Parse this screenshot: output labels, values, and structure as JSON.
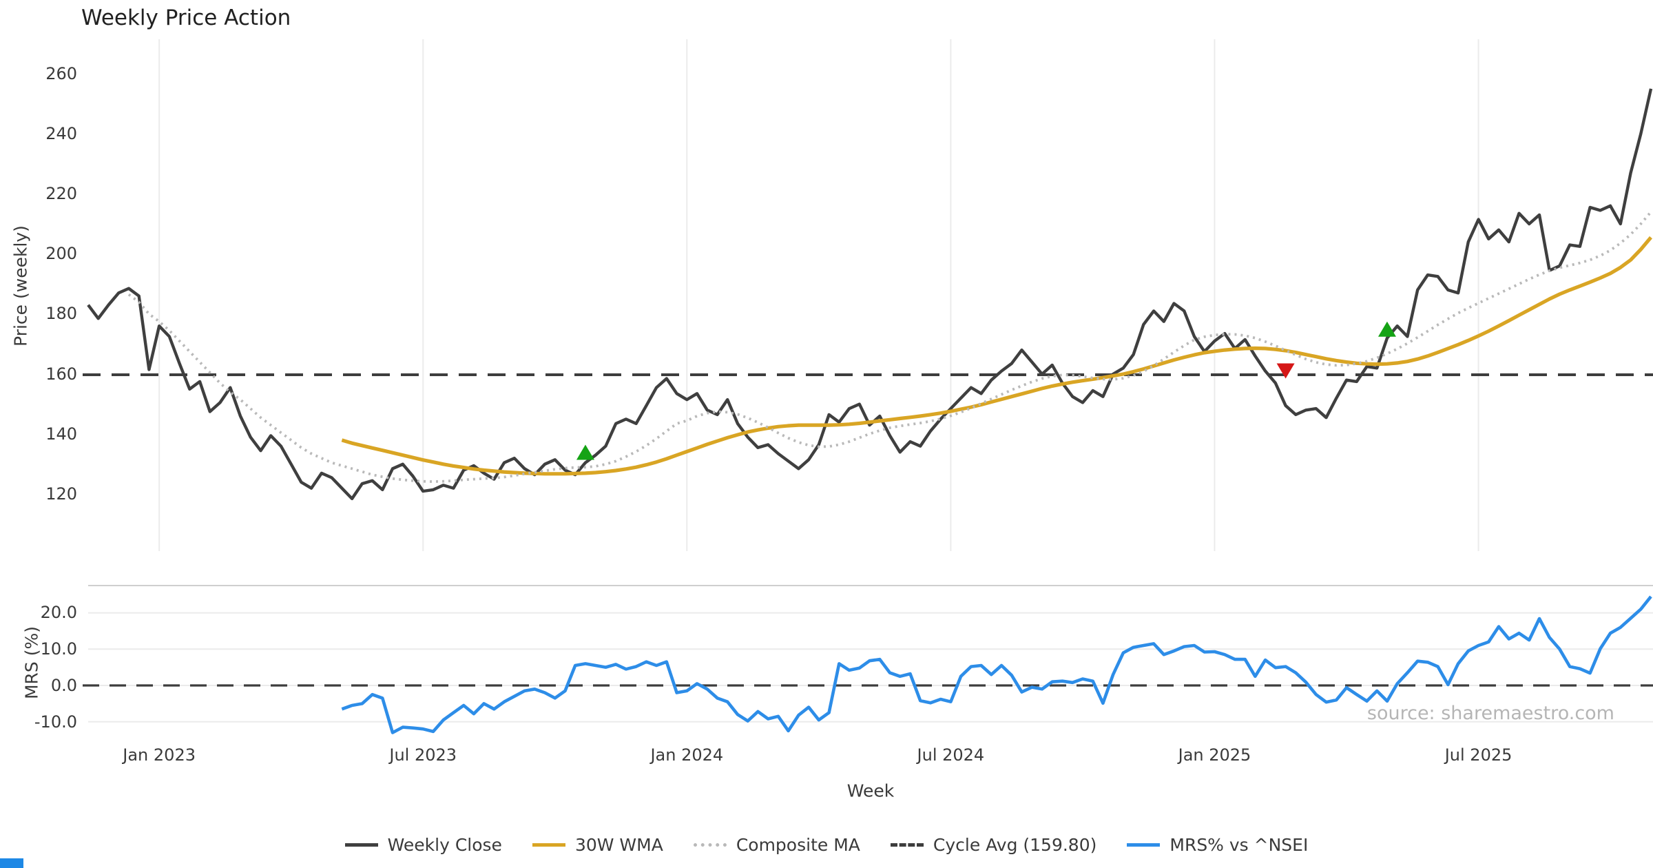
{
  "title": "Weekly Price Action",
  "source_text": "source: sharemaestro.com",
  "axes": {
    "xlabel": "Week",
    "price_ylabel": "Price (weekly)",
    "mrs_ylabel": "MRS (%)"
  },
  "xticks": [
    "Jan 2023",
    "Jul 2023",
    "Jan 2024",
    "Jul 2024",
    "Jan 2025",
    "Jul 2025"
  ],
  "price_yticks": [
    "260",
    "240",
    "220",
    "200",
    "180",
    "160",
    "140",
    "120"
  ],
  "mrs_yticks": [
    "20.0",
    "10.0",
    "0.0",
    "-10.0"
  ],
  "legend": {
    "items": [
      {
        "label": "Weekly Close",
        "color": "#3f3f3f",
        "style": "solid"
      },
      {
        "label": "30W WMA",
        "color": "#d9a524",
        "style": "solid"
      },
      {
        "label": "Composite MA",
        "color": "#b9b9b9",
        "style": "dotted"
      },
      {
        "label": "Cycle Avg (159.80)",
        "color": "#3d3d3d",
        "style": "dashed"
      },
      {
        "label": "MRS% vs ^NSEI",
        "color": "#2d8de8",
        "style": "solid"
      }
    ]
  },
  "colors": {
    "weekly_close": "#3f3f3f",
    "wma": "#d9a524",
    "composite": "#b9b9b9",
    "cycle_avg": "#3d3d3d",
    "mrs": "#2d8de8",
    "signal_green": "#15a315",
    "signal_red": "#d51717",
    "grid": "#ebebeb",
    "spine": "#cfcfcf",
    "source": "#b5b5b5"
  },
  "chart_data": {
    "type": "line",
    "x_unit": "weekly, week 0 = mid-Nov 2022, ticks at weeks 7/33/59/85/111/137",
    "tick_weeks": [
      7,
      33,
      59,
      85,
      111,
      137
    ],
    "price_axis": {
      "ticks": [
        260,
        240,
        220,
        200,
        180,
        160,
        140,
        120
      ],
      "cycle_avg": 159.8
    },
    "mrs_axis": {
      "ticks": [
        20.0,
        10.0,
        0.0,
        -10.0
      ],
      "zero_dashed": true
    },
    "series": [
      {
        "id": "weekly_close",
        "name": "Weekly Close",
        "panel": "price",
        "start": 0,
        "values": [
          183,
          178.5,
          183,
          187,
          188.5,
          186,
          161.5,
          176,
          172.5,
          163.5,
          155,
          157.5,
          147.5,
          150.5,
          155.5,
          146,
          139,
          134.5,
          139.5,
          136,
          130,
          124,
          122,
          127,
          125.5,
          122,
          118.5,
          123.5,
          124.5,
          121.5,
          128.5,
          130,
          126,
          121,
          121.5,
          123,
          122,
          128,
          129.5,
          127,
          125,
          130.5,
          132,
          128.5,
          126.5,
          130,
          131.5,
          128,
          126.5,
          130.5,
          133,
          136,
          143.5,
          145,
          143.5,
          149.5,
          155.5,
          158.5,
          153.5,
          151.5,
          153.5,
          148,
          146.5,
          151.5,
          143.5,
          139,
          135.5,
          136.5,
          133.5,
          131,
          128.5,
          131.5,
          136.5,
          146.5,
          144,
          148.5,
          150,
          143,
          146,
          139.5,
          134,
          137.5,
          136,
          141,
          145,
          148.5,
          152,
          155.5,
          153.5,
          158,
          161,
          163.5,
          168,
          164,
          160,
          163,
          157,
          152.5,
          150.5,
          154.5,
          152.5,
          160,
          162,
          166.5,
          176.5,
          181,
          177.5,
          183.5,
          181,
          172.5,
          167.5,
          171,
          173.5,
          168.5,
          171.5,
          166,
          161,
          157,
          149.5,
          146.5,
          148,
          148.5,
          145.5,
          152,
          158,
          157.5,
          162.5,
          162,
          172,
          176,
          172.5,
          188,
          193,
          192.5,
          188,
          187,
          204,
          211.5,
          205,
          208,
          204,
          213.5,
          210,
          213,
          194.5,
          196,
          203,
          202.5,
          215.5,
          214.5,
          216,
          210,
          227,
          240,
          255
        ]
      },
      {
        "id": "wma",
        "name": "30W WMA",
        "panel": "price",
        "start": 25,
        "values": [
          138,
          137,
          136.2,
          135.4,
          134.6,
          133.8,
          133,
          132.2,
          131.4,
          130.7,
          130,
          129.4,
          128.9,
          128.4,
          128,
          127.7,
          127.4,
          127.2,
          127,
          126.9,
          126.8,
          126.8,
          126.8,
          126.9,
          127,
          127.2,
          127.5,
          127.9,
          128.4,
          129,
          129.8,
          130.7,
          131.8,
          133,
          134.2,
          135.4,
          136.6,
          137.7,
          138.8,
          139.8,
          140.7,
          141.4,
          142,
          142.5,
          142.8,
          143,
          143,
          143,
          143,
          143.1,
          143.3,
          143.6,
          144,
          144.4,
          144.8,
          145.2,
          145.6,
          146,
          146.5,
          147,
          147.6,
          148.3,
          149,
          149.8,
          150.7,
          151.6,
          152.5,
          153.4,
          154.3,
          155.2,
          156,
          156.7,
          157.3,
          157.8,
          158.3,
          158.8,
          159.4,
          160,
          160.8,
          161.7,
          162.7,
          163.7,
          164.7,
          165.6,
          166.4,
          167.1,
          167.6,
          168,
          168.3,
          168.5,
          168.6,
          168.5,
          168.2,
          167.8,
          167.2,
          166.5,
          165.8,
          165.1,
          164.5,
          164,
          163.6,
          163.4,
          163.3,
          163.4,
          163.7,
          164.2,
          165,
          166,
          167.2,
          168.5,
          169.8,
          171.2,
          172.7,
          174.3,
          176,
          177.8,
          179.6,
          181.4,
          183.2,
          185,
          186.6,
          188,
          189.3,
          190.6,
          192,
          193.5,
          195.5,
          198,
          201.5,
          205.5
        ]
      },
      {
        "id": "composite",
        "name": "Composite MA",
        "panel": "price",
        "start": 4,
        "values": [
          186.5,
          184,
          180,
          177.5,
          174.5,
          171,
          167.5,
          164,
          160.5,
          157,
          154,
          151.5,
          148.5,
          145.5,
          143,
          140.5,
          138,
          135.5,
          133.5,
          132,
          130.5,
          129.5,
          128.5,
          127.5,
          126.5,
          125.8,
          125.2,
          124.8,
          124.5,
          124.3,
          124.2,
          124.3,
          124.5,
          124.8,
          125,
          125.2,
          125.4,
          125.7,
          126.2,
          126.8,
          127.3,
          127.8,
          128.3,
          128.7,
          128.9,
          129,
          129.3,
          130,
          131,
          132.5,
          134.2,
          136.2,
          138.5,
          141,
          143.5,
          144.5,
          146,
          147,
          147.5,
          147.3,
          146.6,
          145.4,
          143.9,
          142.2,
          140.4,
          138.7,
          137.3,
          136.3,
          135.8,
          135.9,
          136.5,
          137.5,
          138.8,
          140.1,
          141.2,
          142.1,
          142.7,
          143.2,
          143.7,
          144.3,
          145.1,
          146.1,
          147.3,
          148.7,
          150.2,
          151.7,
          153.2,
          154.7,
          156.1,
          157.4,
          158.5,
          159.3,
          159.7,
          159.6,
          159.2,
          158.7,
          158.3,
          158.2,
          158.6,
          159.5,
          160.9,
          162.8,
          165,
          167.3,
          169.5,
          171.4,
          172.4,
          173,
          173.3,
          173.2,
          172.8,
          172,
          170.8,
          169.4,
          167.9,
          166.4,
          165,
          163.9,
          163.2,
          162.9,
          163,
          163.5,
          164.3,
          165.4,
          166.8,
          168.4,
          170.2,
          172.2,
          174.3,
          176.4,
          178.4,
          180.3,
          182,
          183.6,
          185.2,
          186.8,
          188.4,
          190,
          191.6,
          193.1,
          194.4,
          195.4,
          196.2,
          197,
          198,
          199.4,
          201.2,
          203.6,
          206.5,
          210,
          214
        ]
      },
      {
        "id": "mrs",
        "name": "MRS% vs ^NSEI",
        "panel": "mrs",
        "start": 25,
        "values": [
          -6.5,
          -5.5,
          -5,
          -2.5,
          -3.5,
          -13,
          -11.5,
          -11.7,
          -12,
          -12.7,
          -9.5,
          -7.5,
          -5.5,
          -7.8,
          -5,
          -6.5,
          -4.5,
          -3,
          -1.5,
          -1,
          -2,
          -3.5,
          -1.5,
          5.5,
          6,
          5.5,
          5,
          5.8,
          4.5,
          5.2,
          6.5,
          5.5,
          6.5,
          -2,
          -1.5,
          0.5,
          -1,
          -3.5,
          -4.5,
          -8,
          -9.8,
          -7.2,
          -9.2,
          -8.5,
          -12.5,
          -8.2,
          -6,
          -9.5,
          -7.5,
          6,
          4.2,
          4.8,
          6.8,
          7.2,
          3.5,
          2.5,
          3.2,
          -4.2,
          -4.8,
          -3.8,
          -4.5,
          2.5,
          5.2,
          5.5,
          3,
          5.5,
          2.8,
          -1.8,
          -0.5,
          -1,
          1,
          1.2,
          0.8,
          1.8,
          1.2,
          -4.9,
          3,
          9,
          10.5,
          11,
          11.5,
          8.5,
          9.5,
          10.7,
          11,
          9.2,
          9.3,
          8.5,
          7.2,
          7.2,
          2.5,
          7,
          4.9,
          5.2,
          3.5,
          0.9,
          -2.5,
          -4.6,
          -4,
          -0.6,
          -2.5,
          -4.3,
          -1.5,
          -4.3,
          0.5,
          3.5,
          6.7,
          6.4,
          5.2,
          0.2,
          6,
          9.5,
          11,
          12,
          16.2,
          12.8,
          14.4,
          12.5,
          18.4,
          13.2,
          10,
          5.2,
          4.6,
          3.4,
          10.1,
          14.4,
          16,
          18.5,
          21,
          24.5
        ]
      }
    ],
    "markers": [
      {
        "type": "up",
        "week": 49,
        "value": 133.5
      },
      {
        "type": "down",
        "week": 118,
        "value": 161.5
      },
      {
        "type": "up",
        "week": 128,
        "value": 174.5
      }
    ]
  }
}
